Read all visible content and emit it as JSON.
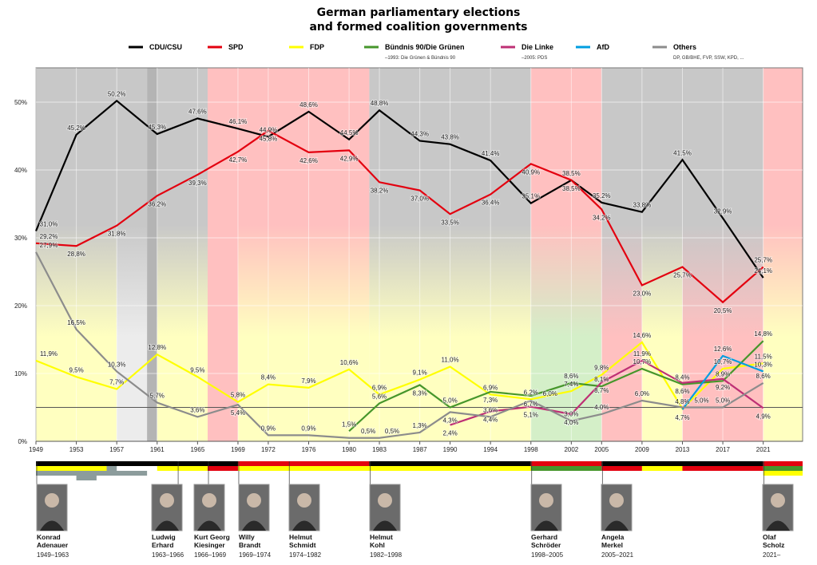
{
  "chart_data": {
    "type": "line",
    "title": [
      "German parliamentary elections",
      "and formed coalition governments"
    ],
    "x": [
      1949,
      1953,
      1957,
      1961,
      1965,
      1969,
      1972,
      1976,
      1980,
      1983,
      1987,
      1990,
      1994,
      1998,
      2002,
      2005,
      2009,
      2013,
      2017,
      2021
    ],
    "xlim": [
      1949,
      2024.9
    ],
    "ylim": [
      0,
      55
    ],
    "yticks": [
      0,
      10,
      20,
      30,
      40,
      50
    ],
    "ytick_labels": [
      "0%",
      "10%",
      "20%",
      "30%",
      "40%",
      "50%"
    ],
    "reference_line": 5,
    "grid": true,
    "legend_placement": "top",
    "series": [
      {
        "name": "CDU/CSU",
        "color": "#000000",
        "sub": "",
        "dy": -6,
        "values": [
          31.0,
          45.2,
          50.2,
          45.3,
          47.6,
          46.1,
          44.9,
          48.6,
          44.5,
          48.8,
          44.3,
          43.8,
          41.4,
          35.1,
          38.5,
          35.2,
          33.8,
          41.5,
          32.9,
          24.1
        ]
      },
      {
        "name": "SPD",
        "color": "#e3000f",
        "sub": "",
        "dy": 13,
        "values": [
          29.2,
          28.8,
          31.8,
          36.2,
          39.3,
          42.7,
          45.8,
          42.6,
          42.9,
          38.2,
          37.0,
          33.5,
          36.4,
          40.9,
          38.5,
          34.2,
          23.0,
          25.7,
          20.5,
          25.7
        ]
      },
      {
        "name": "FDP",
        "color": "#ffff00",
        "sub": "",
        "dy": -6,
        "values": [
          11.9,
          9.5,
          7.7,
          12.8,
          9.5,
          5.8,
          8.4,
          7.9,
          10.6,
          6.9,
          9.1,
          11.0,
          6.9,
          6.2,
          7.4,
          9.8,
          14.6,
          4.8,
          10.7,
          11.5
        ]
      },
      {
        "name": "Bündnis 90/Die Grünen",
        "color": "#46962b",
        "sub": "–1993: Die Grünen & Bündnis 90",
        "dy": -6,
        "values": [
          null,
          null,
          null,
          null,
          null,
          null,
          null,
          null,
          1.5,
          5.6,
          8.3,
          5.0,
          7.3,
          6.7,
          8.6,
          8.1,
          10.7,
          8.4,
          8.9,
          14.8
        ]
      },
      {
        "name": "Die Linke",
        "color": "#be3075",
        "sub": "–2005: PDS",
        "dy": 13,
        "values": [
          null,
          null,
          null,
          null,
          null,
          null,
          null,
          null,
          null,
          null,
          null,
          2.4,
          4.4,
          5.1,
          4.0,
          8.7,
          11.9,
          8.6,
          9.2,
          4.9
        ]
      },
      {
        "name": "AfD",
        "color": "#009ee0",
        "sub": "",
        "dy": -6,
        "values": [
          null,
          null,
          null,
          null,
          null,
          null,
          null,
          null,
          null,
          null,
          null,
          null,
          null,
          null,
          null,
          null,
          null,
          4.7,
          12.6,
          10.3
        ]
      },
      {
        "name": "Others",
        "color": "#8c8c8c",
        "sub": "DP, GB/BHE, FVP, SSW, KPD, ...",
        "dy": -6,
        "values": [
          27.9,
          16.5,
          10.3,
          5.7,
          3.6,
          5.4,
          0.9,
          0.9,
          0.5,
          0.5,
          1.3,
          4.3,
          3.6,
          6.0,
          3.0,
          4.0,
          6.0,
          5.0,
          5.0,
          8.6
        ]
      }
    ],
    "government_periods": [
      {
        "from": 1949,
        "to": 1957,
        "top": "#c8c8c8",
        "bottom": "#ffffc0"
      },
      {
        "from": 1957,
        "to": 1960,
        "top": "#c8c8c8",
        "bottom": "#ececec"
      },
      {
        "from": 1960,
        "to": 1961,
        "top": "#b4b4b4",
        "bottom": "#b4b4b4"
      },
      {
        "from": 1961,
        "to": 1966,
        "top": "#c8c8c8",
        "bottom": "#ffffc0"
      },
      {
        "from": 1966,
        "to": 1969,
        "top": "#ffc0c0",
        "bottom": "#ffc0c0"
      },
      {
        "from": 1969,
        "to": 1982,
        "top": "#ffc0c0",
        "bottom": "#ffffc0"
      },
      {
        "from": 1982,
        "to": 1998,
        "top": "#c8c8c8",
        "bottom": "#ffffc0"
      },
      {
        "from": 1998,
        "to": 2005,
        "top": "#ffc0c0",
        "bottom": "#d4efc8"
      },
      {
        "from": 2005,
        "to": 2009,
        "top": "#c8c8c8",
        "bottom": "#ffc0c0"
      },
      {
        "from": 2009,
        "to": 2013,
        "top": "#c8c8c8",
        "bottom": "#ffffc0"
      },
      {
        "from": 2013,
        "to": 2021,
        "top": "#c8c8c8",
        "bottom": "#ffc0c0"
      },
      {
        "from": 2021,
        "to": 2024.9,
        "top": "#ffc0c0",
        "bottom": "#ffffc0"
      }
    ],
    "coalition_rows": [
      [
        {
          "from": 1949,
          "to": 1969,
          "c": "#000000"
        },
        {
          "from": 1969,
          "to": 1982,
          "c": "#e3000f"
        },
        {
          "from": 1982,
          "to": 1998,
          "c": "#000000"
        },
        {
          "from": 1998,
          "to": 2005,
          "c": "#e3000f"
        },
        {
          "from": 2005,
          "to": 2021,
          "c": "#000000"
        },
        {
          "from": 2021,
          "to": 2024.9,
          "c": "#e3000f"
        }
      ],
      [
        {
          "from": 1949,
          "to": 1956,
          "c": "#ffff00"
        },
        {
          "from": 1956,
          "to": 1957,
          "c": "#8c9c9c"
        },
        {
          "from": 1961,
          "to": 1966,
          "c": "#ffff00"
        },
        {
          "from": 1966,
          "to": 1969,
          "c": "#e3000f"
        },
        {
          "from": 1969,
          "to": 1998,
          "c": "#ffff00"
        },
        {
          "from": 1998,
          "to": 2005,
          "c": "#46962b"
        },
        {
          "from": 2005,
          "to": 2009,
          "c": "#e3000f"
        },
        {
          "from": 2009,
          "to": 2013,
          "c": "#ffff00"
        },
        {
          "from": 2013,
          "to": 2021,
          "c": "#e3000f"
        },
        {
          "from": 2021,
          "to": 2024.9,
          "c": "#46962b"
        }
      ],
      [
        {
          "from": 1949,
          "to": 1960,
          "c": "#8c9c9c"
        },
        {
          "from": 2021,
          "to": 2024.9,
          "c": "#ffff00"
        }
      ],
      [
        {
          "from": 1953,
          "to": 1955,
          "c": "#8c9c9c"
        }
      ]
    ],
    "chancellors": [
      {
        "first": "Konrad",
        "last": "Adenauer",
        "years": "1949–1963",
        "start": 1949
      },
      {
        "first": "Ludwig",
        "last": "Erhard",
        "years": "1963–1966",
        "start": 1963
      },
      {
        "first": "Kurt Georg",
        "last": "Kiesinger",
        "years": "1966–1969",
        "start": 1966
      },
      {
        "first": "Willy",
        "last": "Brandt",
        "years": "1969–1974",
        "start": 1969
      },
      {
        "first": "Helmut",
        "last": "Schmidt",
        "years": "1974–1982",
        "start": 1974
      },
      {
        "first": "Helmut",
        "last": "Kohl",
        "years": "1982–1998",
        "start": 1982
      },
      {
        "first": "Gerhard",
        "last": "Schröder",
        "years": "1998–2005",
        "start": 1998
      },
      {
        "first": "Angela",
        "last": "Merkel",
        "years": "2005–2021",
        "start": 2005
      },
      {
        "first": "Olaf",
        "last": "Scholz",
        "years": "2021–",
        "start": 2021
      }
    ]
  }
}
